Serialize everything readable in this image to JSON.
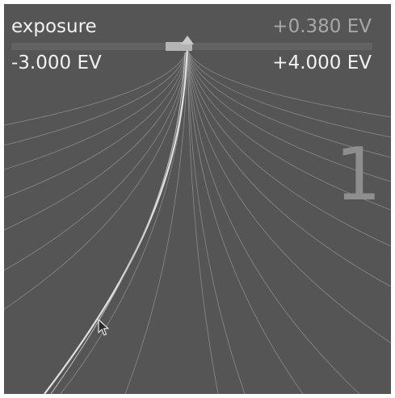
{
  "slider": {
    "label": "exposure",
    "value": "+0.380 EV",
    "min_label": "-3.000 EV",
    "max_label": "+4.000 EV",
    "min": -3.0,
    "max": 4.0,
    "current": 0.38
  },
  "step_indicator": "1",
  "colors": {
    "background": "#555555",
    "text": "#f2f2f2",
    "value_text": "#a8a8a8",
    "step_text": "#8e8e8e",
    "fan_lines": "#8a8a8a",
    "main_curve": "#e0e0e0"
  },
  "icons": {
    "cursor": "mouse-pointer-icon",
    "handle": "slider-handle-icon"
  }
}
